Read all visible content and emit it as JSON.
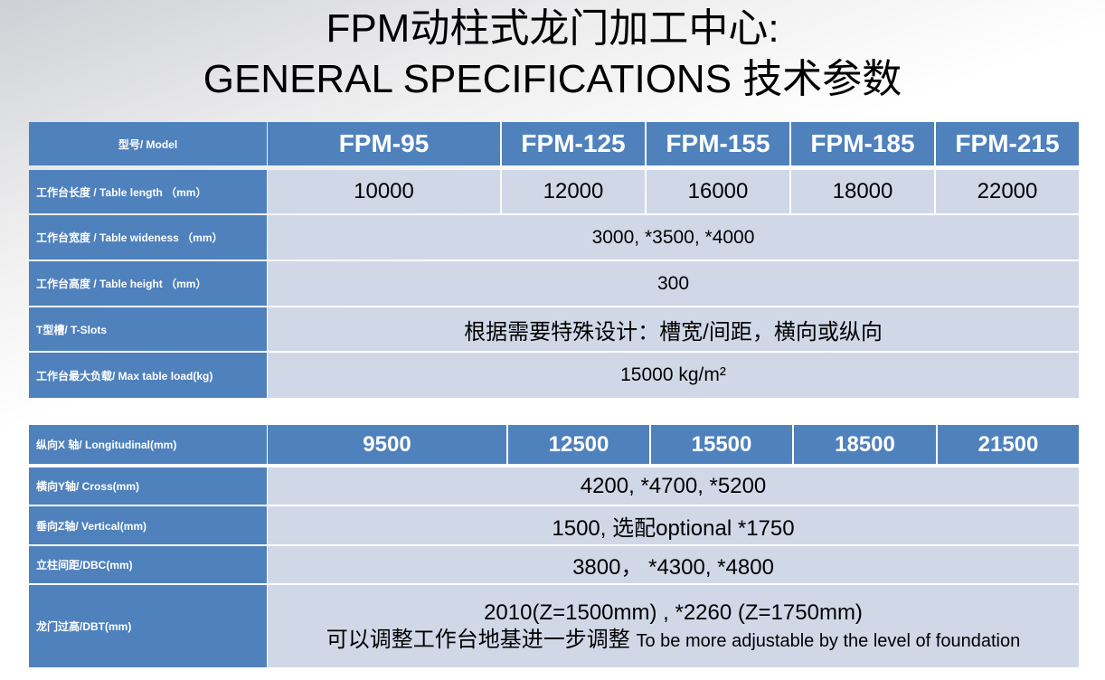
{
  "title": {
    "line1": "FPM动柱式龙门加工中心:",
    "line2": "GENERAL SPECIFICATIONS 技术参数"
  },
  "colors": {
    "header_blue": "#4f81bd",
    "cell_light": "#d0d8e8"
  },
  "table1": {
    "header_label": "型号/ Model",
    "models": [
      "FPM-95",
      "FPM-125",
      "FPM-155",
      "FPM-185",
      "FPM-215"
    ],
    "rows": [
      {
        "label": "工作台长度 / Table length （mm）",
        "values": [
          "10000",
          "12000",
          "16000",
          "18000",
          "22000"
        ]
      },
      {
        "label": "工作台宽度 / Table wideness （mm）",
        "value": "3000, *3500, *4000"
      },
      {
        "label": "工作台高度 / Table height （mm）",
        "value": "300"
      },
      {
        "label": "T型槽/ T-Slots",
        "value": "根据需要特殊设计：槽宽/间距，横向或纵向"
      },
      {
        "label": "工作台最大负载/ Max table load(kg)",
        "value": "15000 kg/m²"
      }
    ]
  },
  "table2": {
    "rows": [
      {
        "label": "纵向X 轴/ Longitudinal(mm)",
        "values": [
          "9500",
          "12500",
          "15500",
          "18500",
          "21500"
        ]
      },
      {
        "label": "横向Y轴/ Cross(mm)",
        "value": "4200, *4700, *5200"
      },
      {
        "label": "垂向Z轴/ Vertical(mm)",
        "value": "1500,  选配optional *1750"
      },
      {
        "label": "立柱间距/DBC(mm)",
        "value": "3800，  *4300, *4800"
      },
      {
        "label": "龙门过高/DBT(mm)",
        "value": "2010(Z=1500mm) , *2260 (Z=1750mm)",
        "note_cn": "可以调整工作台地基进一步调整",
        "note_en": "To be more adjustable by the level of foundation"
      }
    ]
  }
}
